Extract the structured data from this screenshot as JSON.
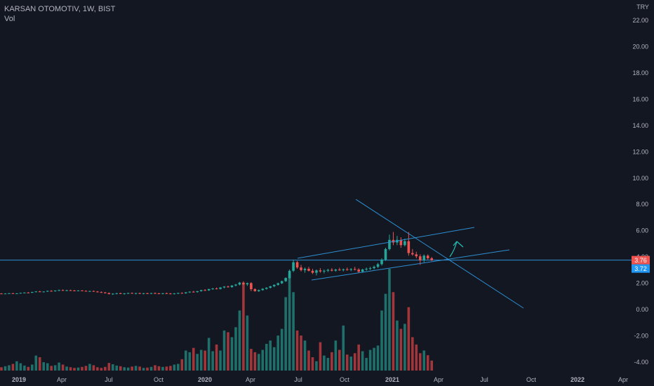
{
  "header": {
    "symbol": "KARSAN OTOMOTIV, 1W, BIST",
    "volume_label": "Vol"
  },
  "currency": "TRY",
  "colors": {
    "background": "#131722",
    "up": "#26a69a",
    "down": "#ef5350",
    "up_volume": "#1f6f6a",
    "down_volume": "#a2363a",
    "drawing": "#2d8fd1",
    "price_badge_red": "#ef5350",
    "price_badge_blue": "#2196f3"
  },
  "chart_data": {
    "type": "candlestick",
    "y_axis_ticks": [
      "22.00",
      "20.00",
      "18.00",
      "16.00",
      "14.00",
      "12.00",
      "10.00",
      "8.00",
      "6.00",
      "4.00",
      "2.00",
      "0.00",
      "-2.00",
      "-4.00"
    ],
    "ylim": [
      -4.5,
      22.8
    ],
    "x_axis_ticks": [
      {
        "label": "2019",
        "bold": true
      },
      {
        "label": "Apr",
        "bold": false
      },
      {
        "label": "Jul",
        "bold": false
      },
      {
        "label": "Oct",
        "bold": false
      },
      {
        "label": "2020",
        "bold": true
      },
      {
        "label": "Apr",
        "bold": false
      },
      {
        "label": "Jul",
        "bold": false
      },
      {
        "label": "Oct",
        "bold": false
      },
      {
        "label": "2021",
        "bold": true
      },
      {
        "label": "Apr",
        "bold": false
      },
      {
        "label": "Jul",
        "bold": false
      },
      {
        "label": "Oct",
        "bold": false
      },
      {
        "label": "2022",
        "bold": true
      },
      {
        "label": "Apr",
        "bold": false
      }
    ],
    "last_price_labels": [
      "3.76",
      "3.72"
    ],
    "horizontal_level": 3.76,
    "candles": [
      [
        1.22,
        1.25,
        1.19,
        1.21
      ],
      [
        1.21,
        1.24,
        1.18,
        1.22
      ],
      [
        1.22,
        1.26,
        1.2,
        1.24
      ],
      [
        1.24,
        1.27,
        1.21,
        1.22
      ],
      [
        1.22,
        1.25,
        1.19,
        1.23
      ],
      [
        1.23,
        1.28,
        1.21,
        1.27
      ],
      [
        1.27,
        1.31,
        1.24,
        1.29
      ],
      [
        1.29,
        1.33,
        1.26,
        1.28
      ],
      [
        1.28,
        1.35,
        1.26,
        1.34
      ],
      [
        1.34,
        1.4,
        1.31,
        1.38
      ],
      [
        1.38,
        1.42,
        1.33,
        1.35
      ],
      [
        1.35,
        1.39,
        1.31,
        1.37
      ],
      [
        1.37,
        1.44,
        1.34,
        1.42
      ],
      [
        1.42,
        1.47,
        1.37,
        1.4
      ],
      [
        1.4,
        1.46,
        1.36,
        1.45
      ],
      [
        1.45,
        1.52,
        1.41,
        1.48
      ],
      [
        1.48,
        1.53,
        1.42,
        1.44
      ],
      [
        1.44,
        1.5,
        1.4,
        1.47
      ],
      [
        1.47,
        1.51,
        1.42,
        1.45
      ],
      [
        1.45,
        1.49,
        1.4,
        1.43
      ],
      [
        1.43,
        1.47,
        1.39,
        1.45
      ],
      [
        1.45,
        1.48,
        1.4,
        1.42
      ],
      [
        1.42,
        1.46,
        1.37,
        1.39
      ],
      [
        1.39,
        1.43,
        1.34,
        1.41
      ],
      [
        1.41,
        1.45,
        1.36,
        1.37
      ],
      [
        1.37,
        1.41,
        1.3,
        1.33
      ],
      [
        1.33,
        1.38,
        1.27,
        1.3
      ],
      [
        1.3,
        1.34,
        1.22,
        1.25
      ],
      [
        1.25,
        1.3,
        1.15,
        1.18
      ],
      [
        1.18,
        1.24,
        1.12,
        1.21
      ],
      [
        1.21,
        1.27,
        1.16,
        1.24
      ],
      [
        1.24,
        1.29,
        1.18,
        1.2
      ],
      [
        1.2,
        1.25,
        1.14,
        1.23
      ],
      [
        1.23,
        1.28,
        1.18,
        1.26
      ],
      [
        1.26,
        1.3,
        1.2,
        1.22
      ],
      [
        1.22,
        1.27,
        1.16,
        1.25
      ],
      [
        1.25,
        1.29,
        1.19,
        1.21
      ],
      [
        1.21,
        1.26,
        1.16,
        1.24
      ],
      [
        1.24,
        1.28,
        1.19,
        1.22
      ],
      [
        1.22,
        1.27,
        1.17,
        1.25
      ],
      [
        1.25,
        1.3,
        1.2,
        1.23
      ],
      [
        1.23,
        1.27,
        1.17,
        1.21
      ],
      [
        1.21,
        1.26,
        1.16,
        1.24
      ],
      [
        1.24,
        1.29,
        1.19,
        1.22
      ],
      [
        1.22,
        1.26,
        1.17,
        1.2
      ],
      [
        1.2,
        1.25,
        1.15,
        1.23
      ],
      [
        1.23,
        1.28,
        1.18,
        1.26
      ],
      [
        1.26,
        1.31,
        1.21,
        1.24
      ],
      [
        1.24,
        1.33,
        1.2,
        1.31
      ],
      [
        1.31,
        1.38,
        1.27,
        1.36
      ],
      [
        1.36,
        1.42,
        1.3,
        1.33
      ],
      [
        1.33,
        1.41,
        1.29,
        1.4
      ],
      [
        1.4,
        1.5,
        1.36,
        1.48
      ],
      [
        1.48,
        1.55,
        1.42,
        1.46
      ],
      [
        1.46,
        1.58,
        1.42,
        1.56
      ],
      [
        1.56,
        1.64,
        1.5,
        1.6
      ],
      [
        1.6,
        1.68,
        1.54,
        1.57
      ],
      [
        1.57,
        1.7,
        1.53,
        1.68
      ],
      [
        1.68,
        1.78,
        1.62,
        1.75
      ],
      [
        1.75,
        1.82,
        1.67,
        1.71
      ],
      [
        1.71,
        1.85,
        1.66,
        1.83
      ],
      [
        1.83,
        1.95,
        1.76,
        1.9
      ],
      [
        1.9,
        2.1,
        1.84,
        2.05
      ],
      [
        2.05,
        2.15,
        1.88,
        1.92
      ],
      [
        1.92,
        2.05,
        1.8,
        2.01
      ],
      [
        2.01,
        2.08,
        1.4,
        1.55
      ],
      [
        1.55,
        1.62,
        1.36,
        1.4
      ],
      [
        1.4,
        1.52,
        1.34,
        1.48
      ],
      [
        1.48,
        1.62,
        1.44,
        1.58
      ],
      [
        1.58,
        1.7,
        1.52,
        1.66
      ],
      [
        1.66,
        1.8,
        1.6,
        1.77
      ],
      [
        1.77,
        1.92,
        1.7,
        1.88
      ],
      [
        1.88,
        2.05,
        1.82,
        2.0
      ],
      [
        2.0,
        2.2,
        1.94,
        2.16
      ],
      [
        2.16,
        2.45,
        2.1,
        2.4
      ],
      [
        2.4,
        3.05,
        2.35,
        2.95
      ],
      [
        2.95,
        3.8,
        2.85,
        3.6
      ],
      [
        3.6,
        3.7,
        3.1,
        3.2
      ],
      [
        3.2,
        3.4,
        2.9,
        3.0
      ],
      [
        3.0,
        3.2,
        2.8,
        3.1
      ],
      [
        3.1,
        3.25,
        2.9,
        2.95
      ],
      [
        2.95,
        3.1,
        2.7,
        2.8
      ],
      [
        2.8,
        3.05,
        2.6,
        2.98
      ],
      [
        2.98,
        3.15,
        2.8,
        2.9
      ],
      [
        2.9,
        3.05,
        2.75,
        2.95
      ],
      [
        2.95,
        3.1,
        2.85,
        3.02
      ],
      [
        3.02,
        3.15,
        2.9,
        2.96
      ],
      [
        2.96,
        3.1,
        2.88,
        3.04
      ],
      [
        3.04,
        3.18,
        2.95,
        3.0
      ],
      [
        3.0,
        3.12,
        2.9,
        3.06
      ],
      [
        3.06,
        3.2,
        2.96,
        3.02
      ],
      [
        3.02,
        3.15,
        2.92,
        3.08
      ],
      [
        3.08,
        3.25,
        2.98,
        3.04
      ],
      [
        3.04,
        3.15,
        2.8,
        2.88
      ],
      [
        2.88,
        3.1,
        2.8,
        3.05
      ],
      [
        3.05,
        3.2,
        2.95,
        3.1
      ],
      [
        3.1,
        3.25,
        3.0,
        3.15
      ],
      [
        3.15,
        3.35,
        3.05,
        3.25
      ],
      [
        3.25,
        3.55,
        3.15,
        3.45
      ],
      [
        3.45,
        3.9,
        3.35,
        3.8
      ],
      [
        3.8,
        4.7,
        3.7,
        4.6
      ],
      [
        4.6,
        5.7,
        4.5,
        5.3
      ],
      [
        5.3,
        5.9,
        4.9,
        5.1
      ],
      [
        5.1,
        5.6,
        4.9,
        5.3
      ],
      [
        5.3,
        5.5,
        4.7,
        4.9
      ],
      [
        4.9,
        5.4,
        4.8,
        5.2
      ],
      [
        5.2,
        5.9,
        4.1,
        4.3
      ],
      [
        4.3,
        4.6,
        4.1,
        4.2
      ],
      [
        4.2,
        4.4,
        3.9,
        4.05
      ],
      [
        4.05,
        4.2,
        3.4,
        3.75
      ],
      [
        3.75,
        4.2,
        3.6,
        4.1
      ],
      [
        4.1,
        4.2,
        3.8,
        3.9
      ],
      [
        3.9,
        4.0,
        3.7,
        3.76
      ]
    ],
    "volumes": [
      0.1,
      0.13,
      0.16,
      0.2,
      0.28,
      0.22,
      0.15,
      0.11,
      0.18,
      0.45,
      0.4,
      0.25,
      0.22,
      0.14,
      0.16,
      0.24,
      0.18,
      0.12,
      0.1,
      0.08,
      0.09,
      0.11,
      0.14,
      0.2,
      0.16,
      0.1,
      0.08,
      0.11,
      0.23,
      0.19,
      0.15,
      0.13,
      0.1,
      0.09,
      0.12,
      0.14,
      0.12,
      0.08,
      0.09,
      0.11,
      0.16,
      0.13,
      0.11,
      0.12,
      0.14,
      0.18,
      0.2,
      0.34,
      0.6,
      0.55,
      0.68,
      0.5,
      0.62,
      0.6,
      0.98,
      0.58,
      0.78,
      0.6,
      1.2,
      1.15,
      1.0,
      1.3,
      1.8,
      2.6,
      1.65,
      0.65,
      0.55,
      0.5,
      0.62,
      0.8,
      0.9,
      0.7,
      1.05,
      1.25,
      2.2,
      2.9,
      2.35,
      1.2,
      1.05,
      0.9,
      0.6,
      0.4,
      0.28,
      0.85,
      0.45,
      0.38,
      0.55,
      0.9,
      0.62,
      1.35,
      0.48,
      0.42,
      0.52,
      0.78,
      0.58,
      0.38,
      0.62,
      0.68,
      0.75,
      1.8,
      2.3,
      3.05,
      2.35,
      1.5,
      1.25,
      1.4,
      1.9,
      1.0,
      0.78,
      0.52,
      0.6,
      0.46,
      0.3
    ]
  }
}
